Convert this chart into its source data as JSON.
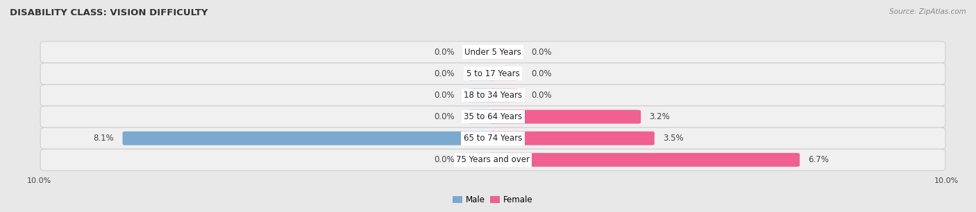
{
  "title": "DISABILITY CLASS: VISION DIFFICULTY",
  "source": "Source: ZipAtlas.com",
  "categories": [
    "Under 5 Years",
    "5 to 17 Years",
    "18 to 34 Years",
    "35 to 64 Years",
    "65 to 74 Years",
    "75 Years and over"
  ],
  "male_values": [
    0.0,
    0.0,
    0.0,
    0.0,
    8.1,
    0.0
  ],
  "female_values": [
    0.0,
    0.0,
    0.0,
    3.2,
    3.5,
    6.7
  ],
  "male_color": "#a8c0dc",
  "female_color": "#f4a0bb",
  "male_color_dark": "#7aaace",
  "female_color_dark": "#f06090",
  "bar_height": 0.52,
  "xlim": 10.0,
  "background_color": "#e8e8e8",
  "row_bg_color": "#f0f0f0",
  "row_border_color": "#d0d0d0",
  "label_fontsize": 8.5,
  "title_fontsize": 9.5,
  "source_fontsize": 7.5,
  "axis_label_fontsize": 8.0,
  "legend_fontsize": 8.5,
  "value_label_fontsize": 8.5
}
